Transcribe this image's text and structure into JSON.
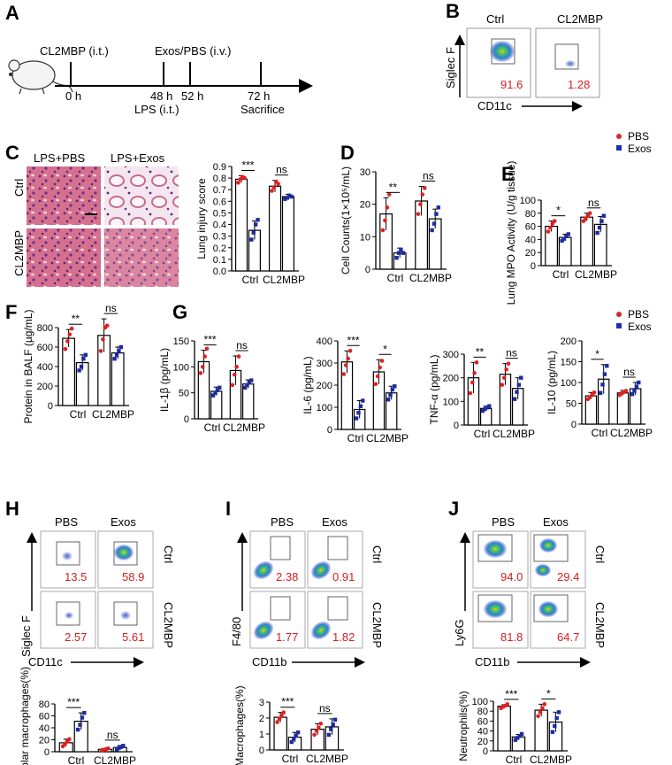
{
  "panel_labels": [
    "A",
    "B",
    "C",
    "D",
    "E",
    "F",
    "G",
    "H",
    "I",
    "J"
  ],
  "timeline": {
    "treat_top": "CL2MBP (i.t.)",
    "exos_top": "Exos/PBS (i.v.)",
    "t0": "0 h",
    "t48": "48 h",
    "t52": "52 h",
    "t72": "72 h",
    "lps": "LPS (i.t.)",
    "sac": "Sacrifice"
  },
  "legend": {
    "pbs": "PBS",
    "exos": "Exos",
    "pbs_color": "#d62828",
    "exos_color": "#1a2fb8"
  },
  "colors": {
    "pbs_bar": "#e02020",
    "exos_bar": "#1d2b9f"
  },
  "panel_b": {
    "cols": [
      "Ctrl",
      "CL2MBP"
    ],
    "ylabel": "Siglec F",
    "xlabel": "CD11c",
    "values": [
      "91.6",
      "1.28"
    ]
  },
  "panel_c": {
    "cols": [
      "LPS+PBS",
      "LPS+Exos"
    ],
    "rows": [
      "Ctrl",
      "CL2MBP"
    ]
  },
  "flow_h": {
    "cols": [
      "PBS",
      "Exos"
    ],
    "rows": [
      "Ctrl",
      "CL2MBP"
    ],
    "ylabel": "Siglec F",
    "xlabel": "CD11c",
    "values": [
      "13.5",
      "58.9",
      "2.57",
      "5.61"
    ]
  },
  "flow_i": {
    "cols": [
      "PBS",
      "Exos"
    ],
    "rows": [
      "Ctrl",
      "CL2MBP"
    ],
    "ylabel": "F4/80",
    "xlabel": "CD11b",
    "values": [
      "2.38",
      "0.91",
      "1.77",
      "1.82"
    ]
  },
  "flow_j": {
    "cols": [
      "PBS",
      "Exos"
    ],
    "rows": [
      "Ctrl",
      "CL2MBP"
    ],
    "ylabel": "Ly6G",
    "xlabel": "CD11b",
    "values": [
      "94.0",
      "29.4",
      "81.8",
      "64.7"
    ]
  },
  "chart_data": [
    {
      "id": "C",
      "type": "bar",
      "title": "",
      "ylabel": "Lung injury score",
      "categories": [
        "Ctrl",
        "CL2MBP"
      ],
      "ylim": [
        0,
        0.9
      ],
      "yticks": [
        "0.0",
        "0.1",
        "0.2",
        "0.3",
        "0.4",
        "0.5",
        "0.6",
        "0.7",
        "0.8",
        "0.9"
      ],
      "series": [
        {
          "name": "PBS",
          "values": [
            0.79,
            0.73
          ],
          "err": [
            0.03,
            0.05
          ],
          "points": [
            [
              0.76,
              0.79,
              0.81,
              0.8
            ],
            [
              0.69,
              0.72,
              0.77,
              0.75
            ]
          ]
        },
        {
          "name": "Exos",
          "values": [
            0.35,
            0.64
          ],
          "err": [
            0.08,
            0.02
          ],
          "points": [
            [
              0.27,
              0.33,
              0.4,
              0.44
            ],
            [
              0.62,
              0.63,
              0.65,
              0.64
            ]
          ]
        }
      ],
      "sig": [
        "***",
        "ns"
      ]
    },
    {
      "id": "D",
      "type": "bar",
      "ylabel": "Cell Counts(1×10⁵/mL)",
      "categories": [
        "Ctrl",
        "CL2MBP"
      ],
      "ylim": [
        0,
        30
      ],
      "yticks": [
        "0",
        "10",
        "20",
        "30"
      ],
      "series": [
        {
          "name": "PBS",
          "values": [
            17,
            21
          ],
          "err": [
            5,
            4.5
          ],
          "points": [
            [
              12,
              15,
              19,
              23
            ],
            [
              17,
              20,
              23,
              25
            ]
          ]
        },
        {
          "name": "Exos",
          "values": [
            5,
            15.5
          ],
          "err": [
            1.5,
            3
          ],
          "points": [
            [
              3.5,
              5,
              6,
              5
            ],
            [
              12,
              14,
              17,
              19
            ]
          ]
        }
      ],
      "sig": [
        "**",
        "ns"
      ]
    },
    {
      "id": "E",
      "type": "bar",
      "ylabel": "Lung MPO Activity (U/g tissue)",
      "categories": [
        "Ctrl",
        "CL2MBP"
      ],
      "ylim": [
        0,
        100
      ],
      "yticks": [
        "0",
        "20",
        "40",
        "60",
        "80",
        "100"
      ],
      "series": [
        {
          "name": "PBS",
          "values": [
            60,
            74
          ],
          "err": [
            8,
            6
          ],
          "points": [
            [
              52,
              58,
              64,
              68
            ],
            [
              68,
              72,
              76,
              80
            ]
          ]
        },
        {
          "name": "Exos",
          "values": [
            43,
            63
          ],
          "err": [
            5,
            12
          ],
          "points": [
            [
              38,
              41,
              45,
              48
            ],
            [
              50,
              58,
              68,
              76
            ]
          ]
        }
      ],
      "sig": [
        "*",
        "ns"
      ]
    },
    {
      "id": "F",
      "type": "bar",
      "ylabel": "Protein in BALF (µg/mL)",
      "categories": [
        "Ctrl",
        "CL2MBP"
      ],
      "ylim": [
        0,
        800
      ],
      "yticks": [
        "0",
        "200",
        "400",
        "600",
        "800"
      ],
      "series": [
        {
          "name": "PBS",
          "values": [
            690,
            720
          ],
          "err": [
            90,
            170
          ],
          "points": [
            [
              580,
              660,
              730,
              790
            ],
            [
              560,
              680,
              800,
              820
            ]
          ]
        },
        {
          "name": "Exos",
          "values": [
            440,
            540
          ],
          "err": [
            80,
            60
          ],
          "points": [
            [
              360,
              400,
              480,
              520
            ],
            [
              480,
              520,
              560,
              600
            ]
          ]
        }
      ],
      "sig": [
        "**",
        "ns"
      ]
    },
    {
      "id": "G1",
      "type": "bar",
      "ylabel": "IL-1β (pg/mL)",
      "categories": [
        "Ctrl",
        "CL2MBP"
      ],
      "ylim": [
        0,
        150
      ],
      "yticks": [
        "0",
        "50",
        "100",
        "150"
      ],
      "series": [
        {
          "name": "PBS",
          "values": [
            110,
            93
          ],
          "err": [
            22,
            28
          ],
          "points": [
            [
              88,
              100,
              120,
              135
            ],
            [
              65,
              85,
              100,
              120
            ]
          ]
        },
        {
          "name": "Exos",
          "values": [
            53,
            67
          ],
          "err": [
            8,
            8
          ],
          "points": [
            [
              45,
              50,
              55,
              60
            ],
            [
              60,
              65,
              70,
              74
            ]
          ]
        }
      ],
      "sig": [
        "***",
        "ns"
      ]
    },
    {
      "id": "G2",
      "type": "bar",
      "ylabel": "IL-6 (pg/mL)",
      "categories": [
        "Ctrl",
        "CL2MBP"
      ],
      "ylim": [
        0,
        400
      ],
      "yticks": [
        "0",
        "100",
        "200",
        "300",
        "400"
      ],
      "series": [
        {
          "name": "PBS",
          "values": [
            305,
            260
          ],
          "err": [
            50,
            55
          ],
          "points": [
            [
              250,
              290,
              320,
              355
            ],
            [
              205,
              240,
              280,
              310
            ]
          ]
        },
        {
          "name": "Exos",
          "values": [
            90,
            165
          ],
          "err": [
            40,
            30
          ],
          "points": [
            [
              50,
              75,
              105,
              130
            ],
            [
              135,
              155,
              180,
              195
            ]
          ]
        }
      ],
      "sig": [
        "***",
        "*"
      ]
    },
    {
      "id": "G3",
      "type": "bar",
      "ylabel": "TNF-α (pg/mL)",
      "categories": [
        "Ctrl",
        "CL2MBP"
      ],
      "ylim": [
        0,
        300
      ],
      "yticks": [
        "0",
        "100",
        "200",
        "300"
      ],
      "series": [
        {
          "name": "PBS",
          "values": [
            200,
            215
          ],
          "err": [
            65,
            45
          ],
          "points": [
            [
              135,
              180,
              220,
              265
            ],
            [
              170,
              200,
              235,
              260
            ]
          ]
        },
        {
          "name": "Exos",
          "values": [
            70,
            155
          ],
          "err": [
            10,
            45
          ],
          "points": [
            [
              60,
              68,
              74,
              80
            ],
            [
              110,
              140,
              170,
              200
            ]
          ]
        }
      ],
      "sig": [
        "**",
        "ns"
      ]
    },
    {
      "id": "G4",
      "type": "bar",
      "ylabel": "IL-10 (pg/mL)",
      "categories": [
        "Ctrl",
        "CL2MBP"
      ],
      "ylim": [
        0,
        200
      ],
      "yticks": [
        "0",
        "50",
        "100",
        "150",
        "200"
      ],
      "series": [
        {
          "name": "PBS",
          "values": [
            68,
            75
          ],
          "err": [
            8,
            6
          ],
          "points": [
            [
              60,
              65,
              70,
              76
            ],
            [
              70,
              74,
              77,
              80
            ]
          ]
        },
        {
          "name": "Exos",
          "values": [
            108,
            85
          ],
          "err": [
            35,
            15
          ],
          "points": [
            [
              75,
              95,
              120,
              140
            ],
            [
              72,
              80,
              90,
              100
            ]
          ]
        }
      ],
      "sig": [
        "*",
        "ns"
      ]
    },
    {
      "id": "H",
      "type": "bar",
      "ylabel": "Alveolar macrophages(%)",
      "categories": [
        "Ctrl",
        "CL2MBP"
      ],
      "ylim": [
        0,
        80
      ],
      "yticks": [
        "0",
        "20",
        "40",
        "60",
        "80"
      ],
      "series": [
        {
          "name": "PBS",
          "values": [
            15,
            4
          ],
          "err": [
            6,
            1.5
          ],
          "points": [
            [
              9,
              13,
              17,
              21
            ],
            [
              2.5,
              3.5,
              4.5,
              5.5
            ]
          ]
        },
        {
          "name": "Exos",
          "values": [
            51,
            7
          ],
          "err": [
            14,
            3.5
          ],
          "points": [
            [
              37,
              45,
              57,
              65
            ],
            [
              4,
              6,
              8,
              10
            ]
          ]
        }
      ],
      "sig": [
        "***",
        "ns"
      ]
    },
    {
      "id": "I",
      "type": "bar",
      "ylabel": "Macrophages(%)",
      "categories": [
        "Ctrl",
        "CL2MBP"
      ],
      "ylim": [
        0,
        3
      ],
      "yticks": [
        "0",
        "1",
        "2",
        "3"
      ],
      "series": [
        {
          "name": "PBS",
          "values": [
            2.05,
            1.3
          ],
          "err": [
            0.3,
            0.35
          ],
          "points": [
            [
              1.75,
              1.95,
              2.15,
              2.35
            ],
            [
              0.95,
              1.2,
              1.4,
              1.65
            ]
          ]
        },
        {
          "name": "Exos",
          "values": [
            0.8,
            1.45
          ],
          "err": [
            0.3,
            0.5
          ],
          "points": [
            [
              0.5,
              0.7,
              0.9,
              1.1
            ],
            [
              0.95,
              1.3,
              1.6,
              1.9
            ]
          ]
        }
      ],
      "sig": [
        "***",
        "ns"
      ]
    },
    {
      "id": "J",
      "type": "bar",
      "ylabel": "Neutrophils(%)",
      "categories": [
        "Ctrl",
        "CL2MBP"
      ],
      "ylim": [
        0,
        100
      ],
      "yticks": [
        "0",
        "20",
        "40",
        "60",
        "80",
        "100"
      ],
      "series": [
        {
          "name": "PBS",
          "values": [
            90,
            82
          ],
          "err": [
            3,
            12
          ],
          "points": [
            [
              86,
              89,
              91,
              94
            ],
            [
              70,
              78,
              86,
              94
            ]
          ]
        },
        {
          "name": "Exos",
          "values": [
            28,
            58
          ],
          "err": [
            5,
            20
          ],
          "points": [
            [
              22,
              26,
              30,
              34
            ],
            [
              38,
              50,
              66,
              78
            ]
          ]
        }
      ],
      "sig": [
        "***",
        "*"
      ]
    }
  ]
}
